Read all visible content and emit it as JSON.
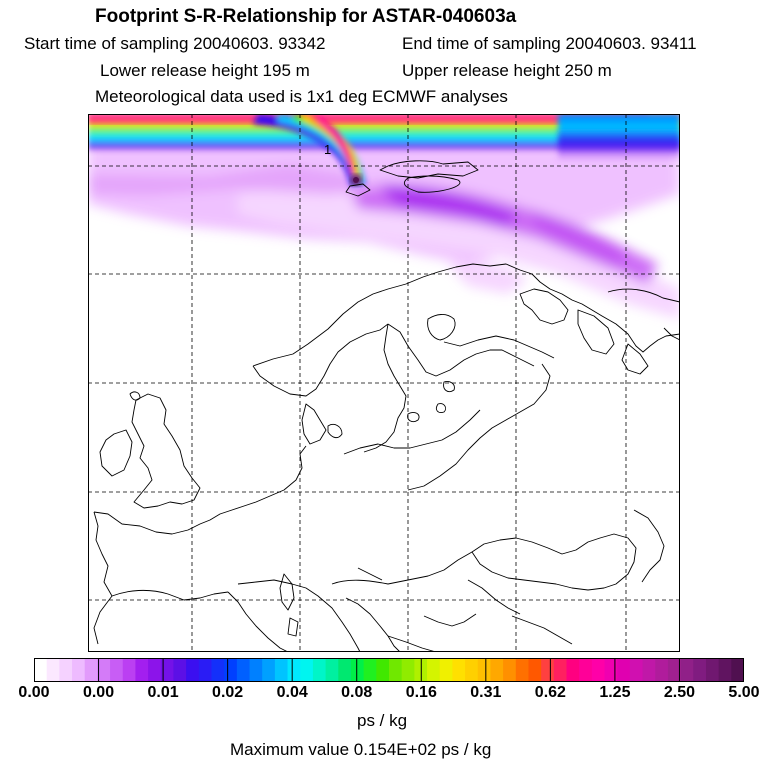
{
  "header": {
    "title": "Footprint S-R-Relationship for ASTAR-040603a",
    "start_time": "Start time of sampling 20040603. 93342",
    "end_time": "End time of sampling 20040603. 93411",
    "lower_height": "Lower release height  195 m",
    "upper_height": "Upper release height  250 m",
    "met_data": "Meteorological data used is 1x1 deg ECMWF analyses"
  },
  "map": {
    "contour_label": "1",
    "grid_style": "dashed",
    "coastline_color": "#000000"
  },
  "colorbar": {
    "tick_labels": [
      "0.00",
      "0.00",
      "0.01",
      "0.02",
      "0.04",
      "0.08",
      "0.16",
      "0.31",
      "0.62",
      "1.25",
      "2.50",
      "5.00"
    ],
    "colors": [
      "#ffffff",
      "#fbe8ff",
      "#f5d2ff",
      "#eebbff",
      "#e29bfb",
      "#d47bf8",
      "#c85df5",
      "#bb3ff2",
      "#a31fef",
      "#8c14ea",
      "#7412e8",
      "#5c10e6",
      "#3b0ff0",
      "#2a1cf5",
      "#1430fa",
      "#0040ff",
      "#0060ff",
      "#0080ff",
      "#00a0ff",
      "#00c4ff",
      "#00e8ff",
      "#00f5f0",
      "#00f5c8",
      "#00f0a0",
      "#00e870",
      "#00f048",
      "#20f020",
      "#40e800",
      "#70e800",
      "#90ec00",
      "#b0f000",
      "#d4f400",
      "#f0f000",
      "#ffe000",
      "#ffd000",
      "#ffc000",
      "#ffa800",
      "#ff9000",
      "#ff7000",
      "#ff5800",
      "#ff4040",
      "#ff2060",
      "#ff0080",
      "#ff0098",
      "#ff00a8",
      "#f000b0",
      "#e000b0",
      "#d010b0",
      "#c018a8",
      "#b01c9c",
      "#a02090",
      "#902088",
      "#801c80",
      "#701870",
      "#601460",
      "#501050"
    ],
    "units": "ps / kg",
    "max_value": "Maximum value  0.154E+02 ps / kg"
  }
}
